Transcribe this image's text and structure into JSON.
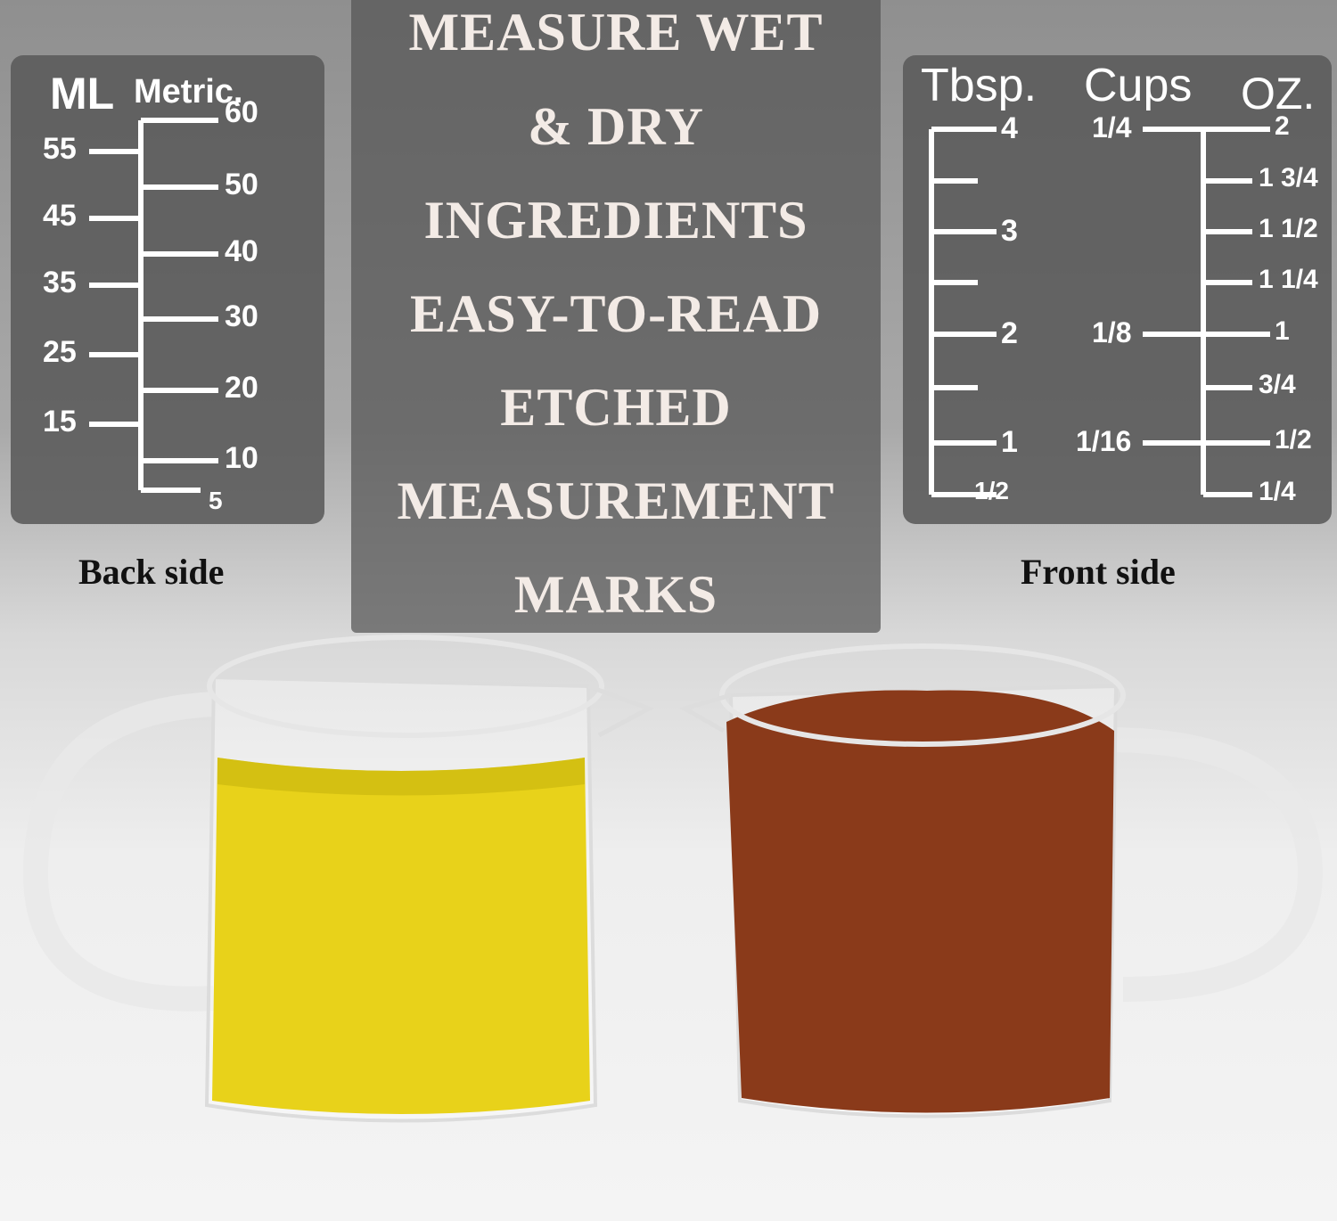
{
  "headline": [
    "MEASURE WET",
    "& DRY",
    "INGREDIENTS",
    "EASY-TO-READ",
    "ETCHED",
    "MEASUREMENT",
    "MARKS"
  ],
  "back_side": {
    "label": "Back side",
    "unit_main": "ML",
    "unit_sub": "Metric.",
    "left_marks": [
      "55",
      "45",
      "35",
      "25",
      "15"
    ],
    "right_marks": [
      "60",
      "50",
      "40",
      "30",
      "20",
      "10",
      "5"
    ]
  },
  "front_side": {
    "label": "Front side",
    "headers": {
      "tbsp": "Tbsp.",
      "cups": "Cups",
      "oz": "OZ."
    },
    "tbsp_marks": [
      "4",
      "3",
      "2",
      "1",
      "1/2"
    ],
    "cups_marks": [
      "1/4",
      "1/8",
      "1/16"
    ],
    "oz_marks": [
      "2",
      "1 3/4",
      "1 1/2",
      "1 1/4",
      "1",
      "3/4",
      "1/2",
      "1/4"
    ]
  },
  "colors": {
    "panel": "#5a5a5a",
    "oil": "#e8d21a",
    "sugar": "#8a3a1a"
  }
}
